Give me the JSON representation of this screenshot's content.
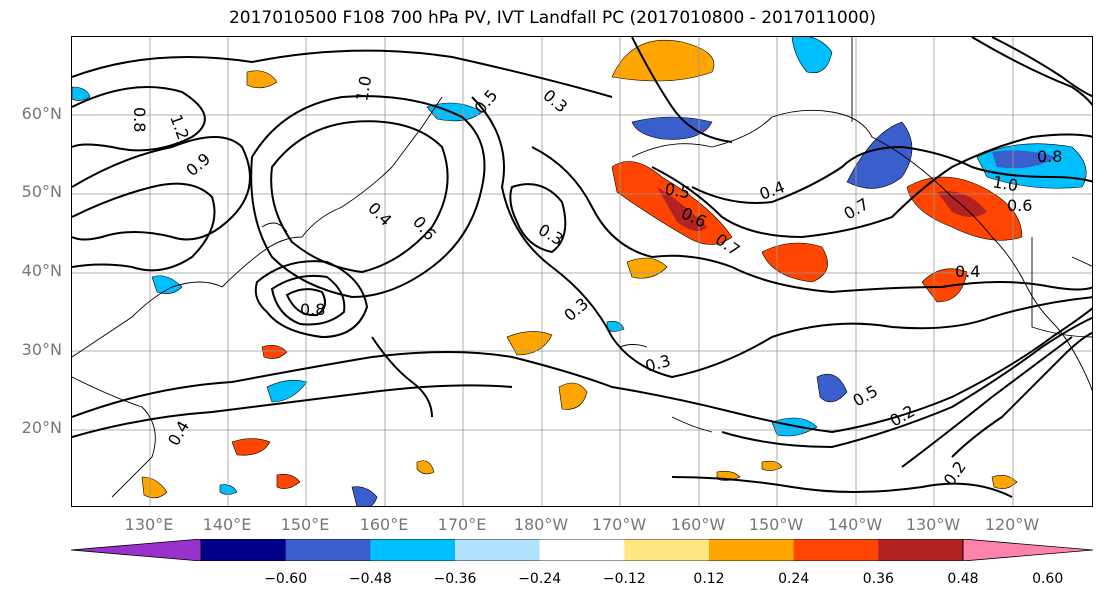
{
  "title": "2017010500 F108 700 hPa PV, IVT Landfall PC (2017010800 - 2017011000)",
  "map": {
    "lat_labels": [
      "60°N",
      "50°N",
      "40°N",
      "30°N",
      "20°N"
    ],
    "lon_labels": [
      "130°E",
      "140°E",
      "150°E",
      "160°E",
      "170°E",
      "180°W",
      "170°W",
      "160°W",
      "150°W",
      "140°W",
      "130°W",
      "120°W"
    ],
    "contour_labels": [
      "0.8",
      "1.2",
      "1.0",
      "0.5",
      "0.3",
      "0.4",
      "0.6",
      "0.3",
      "0.5",
      "0.6",
      "0.7",
      "0.4",
      "0.7",
      "0.8",
      "1.0",
      "0.6",
      "0.8",
      "0.3",
      "0.3",
      "0.5",
      "0.2",
      "0.4",
      "0.2",
      "0.4",
      "0.9"
    ],
    "fill_colors": {
      "purple": "#9932cc",
      "navy": "#00008b",
      "royal_blue": "#3a5fcd",
      "sky": "#00bfff",
      "light_blue": "#b0e2ff",
      "white": "#ffffff",
      "light_yellow": "#ffe680",
      "orange": "#ffa500",
      "red_orange": "#ff4500",
      "dark_red": "#b22222",
      "pink": "#ff82ab"
    }
  },
  "colorbar": {
    "tick_labels": [
      "−0.60",
      "−0.48",
      "−0.36",
      "−0.24",
      "−0.12",
      "0.12",
      "0.24",
      "0.36",
      "0.48",
      "0.60"
    ],
    "colors": [
      "#9932cc",
      "#00008b",
      "#3a5fcd",
      "#00bfff",
      "#b0e2ff",
      "#ffffff",
      "#ffe680",
      "#ffa500",
      "#ff4500",
      "#b22222",
      "#ff82ab"
    ]
  }
}
